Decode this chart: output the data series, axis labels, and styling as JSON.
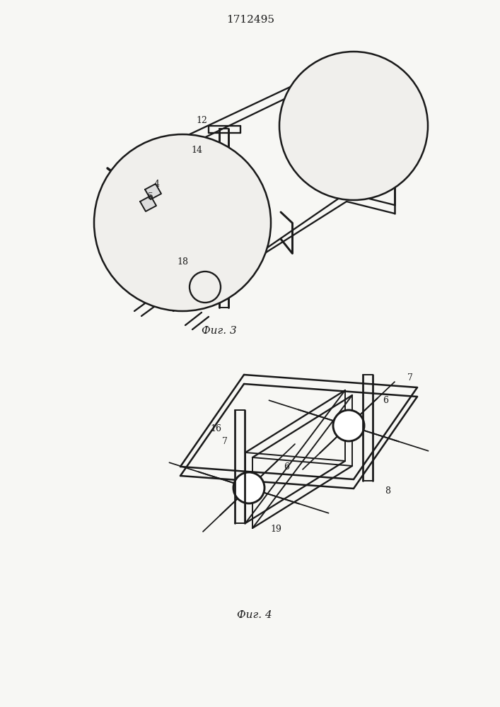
{
  "title": "1712495",
  "bg_color": "#f7f7f4",
  "line_color": "#1a1a1a",
  "lw": 1.4,
  "fig3_caption": "Фиг. 3",
  "fig4_caption": "Фиг. 4"
}
